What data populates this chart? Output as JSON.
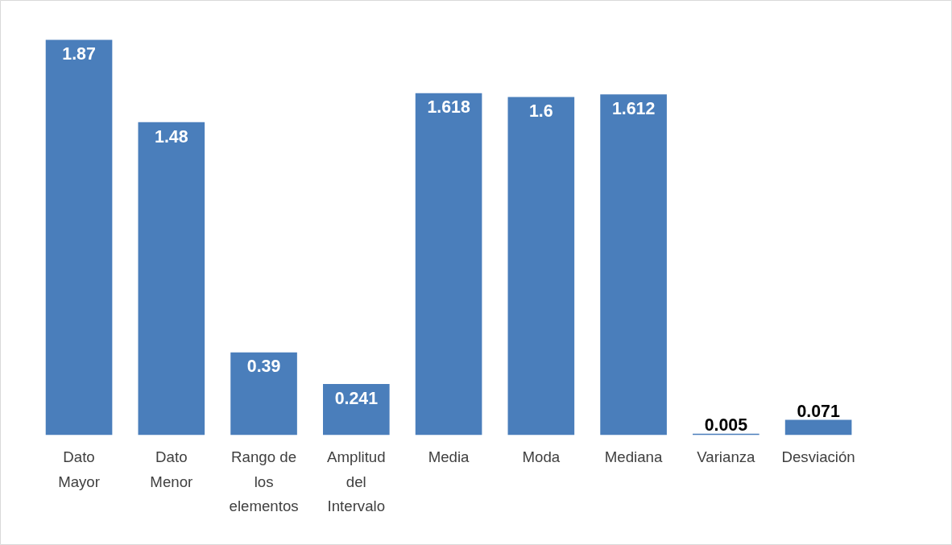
{
  "chart_data": {
    "type": "bar",
    "categories": [
      "Dato Mayor",
      "Dato Menor",
      "Rango de los elementos",
      "Amplitud del Intervalo",
      "Media",
      "Moda",
      "Mediana",
      "Varianza",
      "Desviación"
    ],
    "values": [
      1.87,
      1.48,
      0.39,
      0.241,
      1.618,
      1.6,
      1.612,
      0.005,
      0.071
    ],
    "color": "#4a7ebb",
    "data_labels": true,
    "grid": false
  }
}
